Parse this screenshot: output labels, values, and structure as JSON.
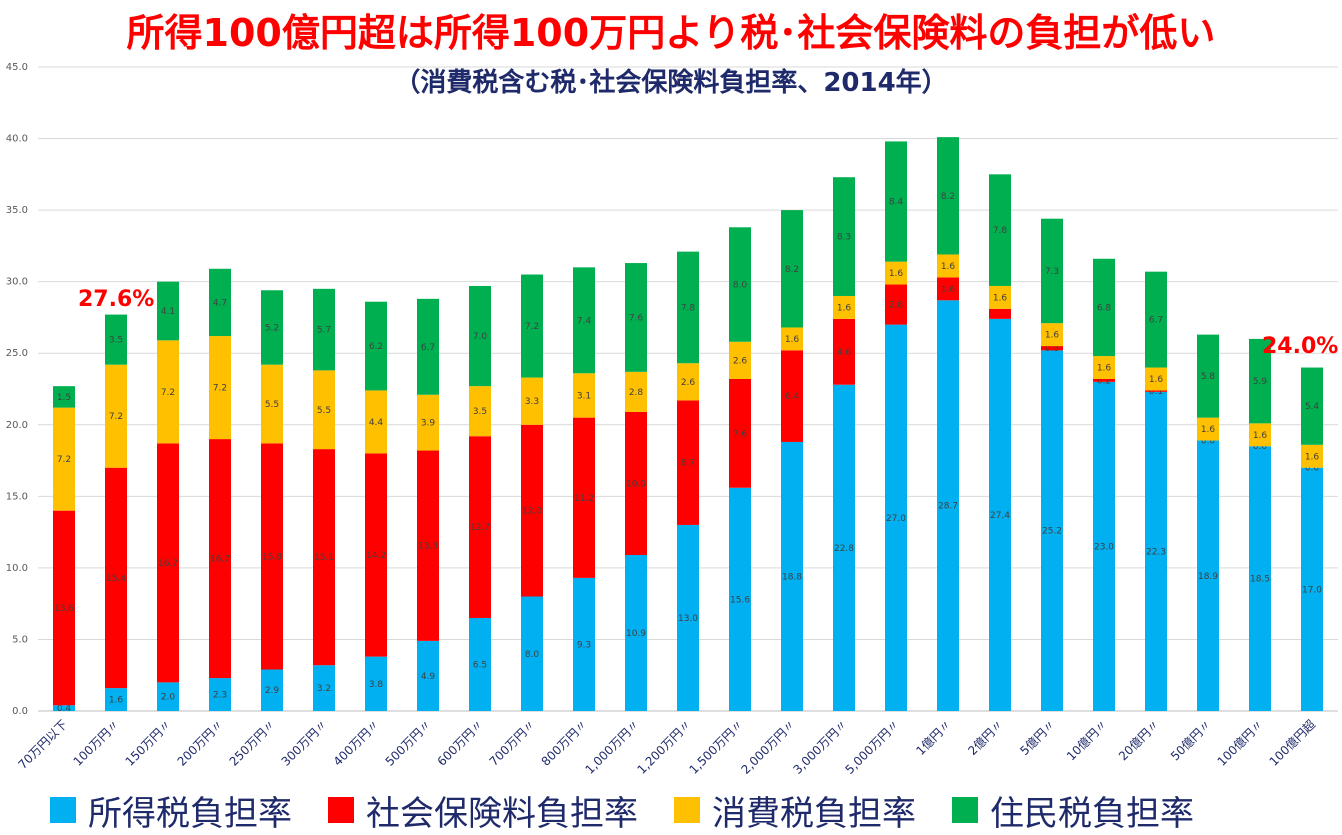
{
  "header": {
    "title": "所得100億円超は所得100万円より税･社会保険料の負担が低い",
    "subtitle": "（消費税含む税･社会保険料負担率、2014年）"
  },
  "callouts": {
    "left": "27.6%",
    "right": "24.0%"
  },
  "chart_data": {
    "type": "bar",
    "stacked": true,
    "title": "所得100億円超は所得100万円より税･社会保険料の負担が低い",
    "subtitle": "（消費税含む税･社会保険料負担率、2014年）",
    "xlabel": "",
    "ylabel": "",
    "ylim": [
      0,
      45
    ],
    "yticks": [
      "0.0",
      "5.0",
      "10.0",
      "15.0",
      "20.0",
      "25.0",
      "30.0",
      "35.0",
      "40.0",
      "45.0"
    ],
    "grid": true,
    "legend_position": "bottom",
    "categories": [
      "70万円以下",
      "100万円〃",
      "150万円〃",
      "200万円〃",
      "250万円〃",
      "300万円〃",
      "400万円〃",
      "500万円〃",
      "600万円〃",
      "700万円〃",
      "800万円〃",
      "1,000万円〃",
      "1,200万円〃",
      "1,500万円〃",
      "2,000万円〃",
      "3,000万円〃",
      "5,000万円〃",
      "1億円〃",
      "2億円〃",
      "5億円〃",
      "10億円〃",
      "20億円〃",
      "50億円〃",
      "100億円〃",
      "100億円超"
    ],
    "series": [
      {
        "name": "所得税負担率",
        "color": "#00b0f0",
        "values": [
          0.4,
          1.6,
          2.0,
          2.3,
          2.9,
          3.2,
          3.8,
          4.9,
          6.5,
          8.0,
          9.3,
          10.9,
          13.0,
          15.6,
          18.8,
          22.8,
          27.0,
          28.7,
          27.4,
          25.2,
          23.0,
          22.3,
          18.9,
          18.5,
          17.0
        ]
      },
      {
        "name": "社会保険料負担率",
        "color": "#ff0000",
        "values": [
          13.6,
          15.4,
          16.7,
          16.7,
          15.8,
          15.1,
          14.2,
          13.3,
          12.7,
          12.0,
          11.2,
          10.0,
          8.7,
          7.6,
          6.4,
          4.6,
          2.8,
          1.6,
          0.7,
          0.3,
          0.2,
          0.1,
          0.0,
          0.0,
          0.0
        ]
      },
      {
        "name": "消費税負担率",
        "color": "#ffc000",
        "values": [
          7.2,
          7.2,
          7.2,
          7.2,
          5.5,
          5.5,
          4.4,
          3.9,
          3.5,
          3.3,
          3.1,
          2.8,
          2.6,
          2.6,
          1.6,
          1.6,
          1.6,
          1.6,
          1.6,
          1.6,
          1.6,
          1.6,
          1.6,
          1.6,
          1.6
        ]
      },
      {
        "name": "住民税負担率",
        "color": "#00b050",
        "values": [
          1.5,
          3.5,
          4.1,
          4.7,
          5.2,
          5.7,
          6.2,
          6.7,
          7.0,
          7.2,
          7.4,
          7.6,
          7.8,
          8.0,
          8.2,
          8.3,
          8.4,
          8.2,
          7.8,
          7.3,
          6.8,
          6.7,
          5.8,
          5.9,
          5.4
        ]
      }
    ],
    "data_labels": [
      [
        "0.4",
        "1.6",
        "2.0",
        "2.3",
        "2.9",
        "3.2",
        "3.8",
        "4.9",
        "6.5",
        "8.0",
        "9.3",
        "10.9",
        "13.0",
        "15.6",
        "18.8",
        "22.8",
        "27.0",
        "28.7",
        "27.4",
        "25.2",
        "23.0",
        "22.3",
        "18.9",
        "18.5",
        "17.0"
      ],
      [
        "13.6",
        "15.4",
        "16.7",
        "16.7",
        "15.8",
        "15.1",
        "14.2",
        "13.3",
        "12.7",
        "12.0",
        "11.2",
        "10.0",
        "8.7",
        "7.6",
        "6.4",
        "4.6",
        "2.8",
        "1.6",
        "",
        "0.3",
        "0.2",
        "0.1",
        "0.0",
        "0.0",
        "0.0"
      ],
      [
        "7.2",
        "7.2",
        "7.2",
        "7.2",
        "5.5",
        "5.5",
        "4.4",
        "3.9",
        "3.5",
        "3.3",
        "3.1",
        "2.8",
        "2.6",
        "2.6",
        "1.6",
        "1.6",
        "1.6",
        "1.6",
        "1.6",
        "1.6",
        "1.6",
        "1.6",
        "1.6",
        "1.6",
        "1.6"
      ],
      [
        "1.5",
        "3.5",
        "4.1",
        "4.7",
        "5.2",
        "5.7",
        "6.2",
        "6.7",
        "7.0",
        "7.2",
        "7.4",
        "7.6",
        "7.8",
        "8.0",
        "8.2",
        "8.3",
        "8.4",
        "8.2",
        "7.8",
        "7.3",
        "6.8",
        "6.7",
        "5.8",
        "5.9",
        "5.4"
      ]
    ]
  }
}
